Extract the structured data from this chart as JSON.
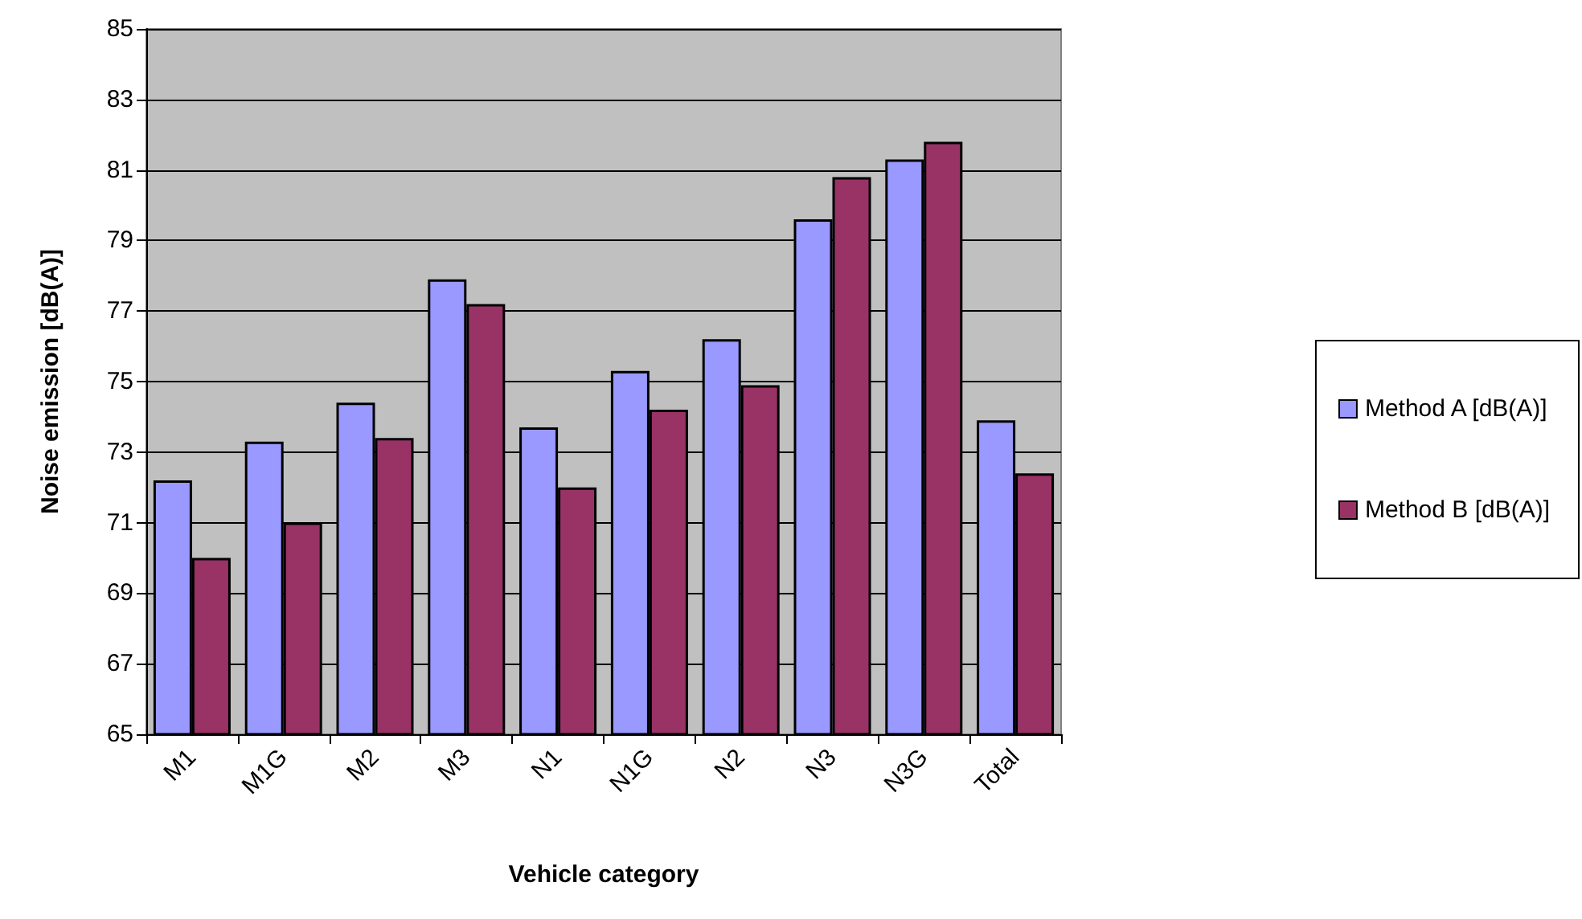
{
  "chart_data": {
    "type": "bar",
    "xlabel": "Vehicle category",
    "ylabel": "Noise emission [dB(A)]",
    "categories": [
      "M1",
      "M1G",
      "M2",
      "M3",
      "N1",
      "N1G",
      "N2",
      "N3",
      "N3G",
      "Total"
    ],
    "series": [
      {
        "name": "Method A [dB(A)]",
        "color": "#9999ff",
        "values": [
          72.2,
          73.3,
          74.4,
          77.9,
          73.7,
          75.3,
          76.2,
          79.6,
          81.3,
          73.9
        ]
      },
      {
        "name": "Method B [dB(A)]",
        "color": "#993366",
        "values": [
          70.0,
          71.0,
          73.4,
          77.2,
          72.0,
          74.2,
          74.9,
          80.8,
          81.8,
          72.4
        ]
      }
    ],
    "ylim": [
      65,
      85
    ],
    "yticks": [
      65,
      67,
      69,
      71,
      73,
      75,
      77,
      79,
      81,
      83,
      85
    ],
    "grid": "y",
    "legend": "right"
  }
}
